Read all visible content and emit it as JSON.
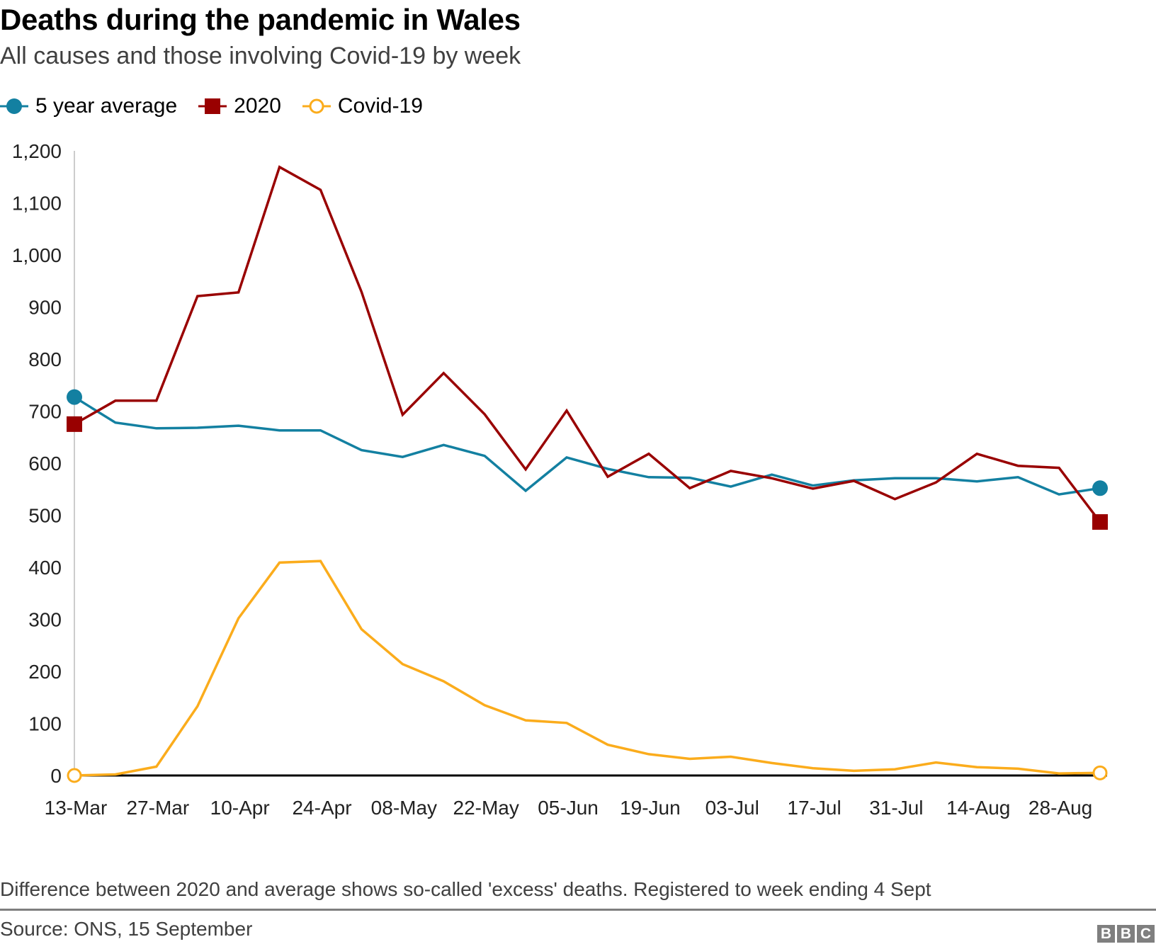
{
  "header": {
    "title": "Deaths during the pandemic in Wales",
    "subtitle": "All causes and those involving Covid-19 by week"
  },
  "legend": [
    {
      "label": "5 year average",
      "marker": "circle-filled",
      "color": "#1380a1"
    },
    {
      "label": "2020",
      "marker": "square-filled",
      "color": "#990000"
    },
    {
      "label": "Covid-19",
      "marker": "circle-open",
      "color": "#fbac1c"
    }
  ],
  "footer": {
    "note": "Difference between 2020 and average shows so-called 'excess' deaths. Registered to week ending 4 Sept",
    "source": "Source: ONS, 15 September",
    "logo_letters": [
      "B",
      "B",
      "C"
    ]
  },
  "chart_data": {
    "type": "line",
    "title": "Deaths during the pandemic in Wales",
    "subtitle": "All causes and those involving Covid-19 by week",
    "xlabel": "",
    "ylabel": "",
    "ylim": [
      0,
      1200
    ],
    "yticks": [
      0,
      100,
      200,
      300,
      400,
      500,
      600,
      700,
      800,
      900,
      1000,
      1100,
      1200
    ],
    "ytick_labels": [
      "0",
      "100",
      "200",
      "300",
      "400",
      "500",
      "600",
      "700",
      "800",
      "900",
      "1,000",
      "1,100",
      "1,200"
    ],
    "x": [
      "13-Mar",
      "20-Mar",
      "27-Mar",
      "03-Apr",
      "10-Apr",
      "17-Apr",
      "24-Apr",
      "01-May",
      "08-May",
      "15-May",
      "22-May",
      "29-May",
      "05-Jun",
      "12-Jun",
      "19-Jun",
      "26-Jun",
      "03-Jul",
      "10-Jul",
      "17-Jul",
      "24-Jul",
      "31-Jul",
      "07-Aug",
      "14-Aug",
      "21-Aug",
      "28-Aug",
      "04-Sep"
    ],
    "xtick_labels": [
      "13-Mar",
      "27-Mar",
      "10-Apr",
      "24-Apr",
      "08-May",
      "22-May",
      "05-Jun",
      "19-Jun",
      "03-Jul",
      "17-Jul",
      "31-Jul",
      "14-Aug",
      "28-Aug"
    ],
    "grid": false,
    "legend_position": "top-left",
    "series": [
      {
        "name": "5 year average",
        "color": "#1380a1",
        "values": [
          727,
          678,
          667,
          668,
          672,
          663,
          663,
          625,
          612,
          635,
          614,
          547,
          611,
          589,
          573,
          572,
          555,
          578,
          557,
          567,
          571,
          571,
          565,
          573,
          540,
          552
        ]
      },
      {
        "name": "2020",
        "color": "#990000",
        "values": [
          675,
          720,
          720,
          921,
          928,
          1169,
          1125,
          929,
          693,
          773,
          694,
          588,
          701,
          574,
          618,
          552,
          585,
          571,
          551,
          566,
          531,
          563,
          618,
          595,
          591,
          487
        ]
      },
      {
        "name": "Covid-19",
        "color": "#fbac1c",
        "values": [
          0,
          2,
          17,
          133,
          302,
          409,
          412,
          281,
          214,
          181,
          135,
          106,
          101,
          59,
          41,
          32,
          36,
          24,
          14,
          9,
          12,
          25,
          16,
          13,
          4,
          5
        ]
      }
    ]
  }
}
